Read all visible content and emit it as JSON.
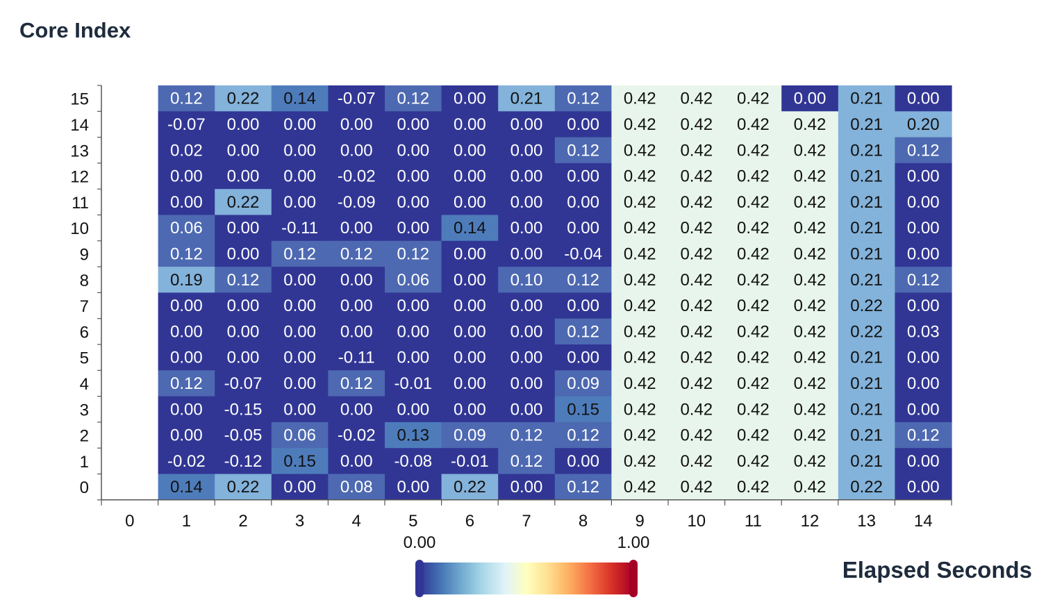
{
  "chart_data": {
    "type": "heatmap",
    "ylabel": "Core Index",
    "xlabel": "Elapsed Seconds",
    "x_categories": [
      "0",
      "1",
      "2",
      "3",
      "4",
      "5",
      "6",
      "7",
      "8",
      "9",
      "10",
      "11",
      "12",
      "13",
      "14"
    ],
    "y_categories": [
      "0",
      "1",
      "2",
      "3",
      "4",
      "5",
      "6",
      "7",
      "8",
      "9",
      "10",
      "11",
      "12",
      "13",
      "14",
      "15"
    ],
    "value_format": "2 decimals",
    "rows": [
      {
        "y": "15",
        "values": [
          null,
          0.12,
          0.22,
          0.14,
          -0.07,
          0.12,
          0.0,
          0.21,
          0.12,
          0.42,
          0.42,
          0.42,
          0.0,
          0.21,
          0.0
        ]
      },
      {
        "y": "14",
        "values": [
          null,
          -0.07,
          0.0,
          0.0,
          0.0,
          0.0,
          0.0,
          0.0,
          0.0,
          0.42,
          0.42,
          0.42,
          0.42,
          0.21,
          0.2
        ]
      },
      {
        "y": "13",
        "values": [
          null,
          0.02,
          0.0,
          0.0,
          0.0,
          0.0,
          0.0,
          0.0,
          0.12,
          0.42,
          0.42,
          0.42,
          0.42,
          0.21,
          0.12
        ]
      },
      {
        "y": "12",
        "values": [
          null,
          0.0,
          0.0,
          0.0,
          -0.02,
          0.0,
          0.0,
          0.0,
          0.0,
          0.42,
          0.42,
          0.42,
          0.42,
          0.21,
          0.0
        ]
      },
      {
        "y": "11",
        "values": [
          null,
          0.0,
          0.22,
          0.0,
          -0.09,
          0.0,
          0.0,
          0.0,
          0.0,
          0.42,
          0.42,
          0.42,
          0.42,
          0.21,
          0.0
        ]
      },
      {
        "y": "10",
        "values": [
          null,
          0.06,
          0.0,
          -0.11,
          0.0,
          0.0,
          0.14,
          0.0,
          0.0,
          0.42,
          0.42,
          0.42,
          0.42,
          0.21,
          0.0
        ]
      },
      {
        "y": "9",
        "values": [
          null,
          0.12,
          0.0,
          0.12,
          0.12,
          0.12,
          0.0,
          0.0,
          -0.04,
          0.42,
          0.42,
          0.42,
          0.42,
          0.21,
          0.0
        ]
      },
      {
        "y": "8",
        "values": [
          null,
          0.19,
          0.12,
          0.0,
          0.0,
          0.06,
          0.0,
          0.1,
          0.12,
          0.42,
          0.42,
          0.42,
          0.42,
          0.21,
          0.12
        ]
      },
      {
        "y": "7",
        "values": [
          null,
          0.0,
          0.0,
          0.0,
          0.0,
          0.0,
          0.0,
          0.0,
          0.0,
          0.42,
          0.42,
          0.42,
          0.42,
          0.22,
          0.0
        ]
      },
      {
        "y": "6",
        "values": [
          null,
          0.0,
          0.0,
          0.0,
          0.0,
          0.0,
          0.0,
          0.0,
          0.12,
          0.42,
          0.42,
          0.42,
          0.42,
          0.22,
          0.03
        ]
      },
      {
        "y": "5",
        "values": [
          null,
          0.0,
          0.0,
          0.0,
          -0.11,
          0.0,
          0.0,
          0.0,
          0.0,
          0.42,
          0.42,
          0.42,
          0.42,
          0.21,
          0.0
        ]
      },
      {
        "y": "4",
        "values": [
          null,
          0.12,
          -0.07,
          0.0,
          0.12,
          -0.01,
          0.0,
          0.0,
          0.09,
          0.42,
          0.42,
          0.42,
          0.42,
          0.21,
          0.0
        ]
      },
      {
        "y": "3",
        "values": [
          null,
          0.0,
          -0.15,
          0.0,
          0.0,
          0.0,
          0.0,
          0.0,
          0.15,
          0.42,
          0.42,
          0.42,
          0.42,
          0.21,
          0.0
        ]
      },
      {
        "y": "2",
        "values": [
          null,
          0.0,
          -0.05,
          0.06,
          -0.02,
          0.13,
          0.09,
          0.12,
          0.12,
          0.42,
          0.42,
          0.42,
          0.42,
          0.21,
          0.12
        ]
      },
      {
        "y": "1",
        "values": [
          null,
          -0.02,
          -0.12,
          0.15,
          0.0,
          -0.08,
          -0.01,
          0.12,
          0.0,
          0.42,
          0.42,
          0.42,
          0.42,
          0.21,
          0.0
        ]
      },
      {
        "y": "0",
        "values": [
          null,
          0.14,
          0.22,
          0.0,
          0.08,
          0.0,
          0.22,
          0.0,
          0.12,
          0.42,
          0.42,
          0.42,
          0.42,
          0.22,
          0.0
        ]
      }
    ],
    "colorbar": {
      "min_label": "0.00",
      "max_label": "1.00",
      "scale": "RdYlBu reversed (blue low, red high)"
    },
    "grid": false,
    "legend": "colorbar at bottom-center"
  }
}
